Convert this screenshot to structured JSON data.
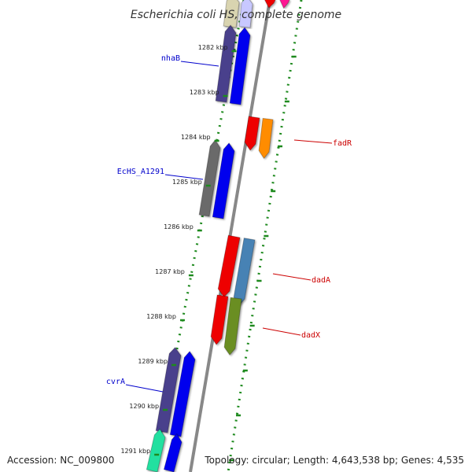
{
  "title": "Escherichia coli HS, complete genome",
  "footer": {
    "accession": "Accession: NC_009800",
    "summary": "Topology: circular; Length: 4,643,538 bp; Genes: 4,535"
  },
  "axis": {
    "unit": "kbp",
    "ticks": [
      "1282 kbp",
      "1283 kbp",
      "1284 kbp",
      "1285 kbp",
      "1286 kbp",
      "1287 kbp",
      "1288 kbp",
      "1289 kbp",
      "1290 kbp",
      "1291 kbp"
    ]
  },
  "colors": {
    "backbone": "#888888",
    "dots": "#1e8a1e",
    "forward_label": "#0000cc",
    "reverse_label": "#cc0000"
  },
  "labels": {
    "forward": [
      "nhaB",
      "EcHS_A1291",
      "cvrA"
    ],
    "reverse": [
      "fadR",
      "dadA",
      "dadX"
    ]
  }
}
